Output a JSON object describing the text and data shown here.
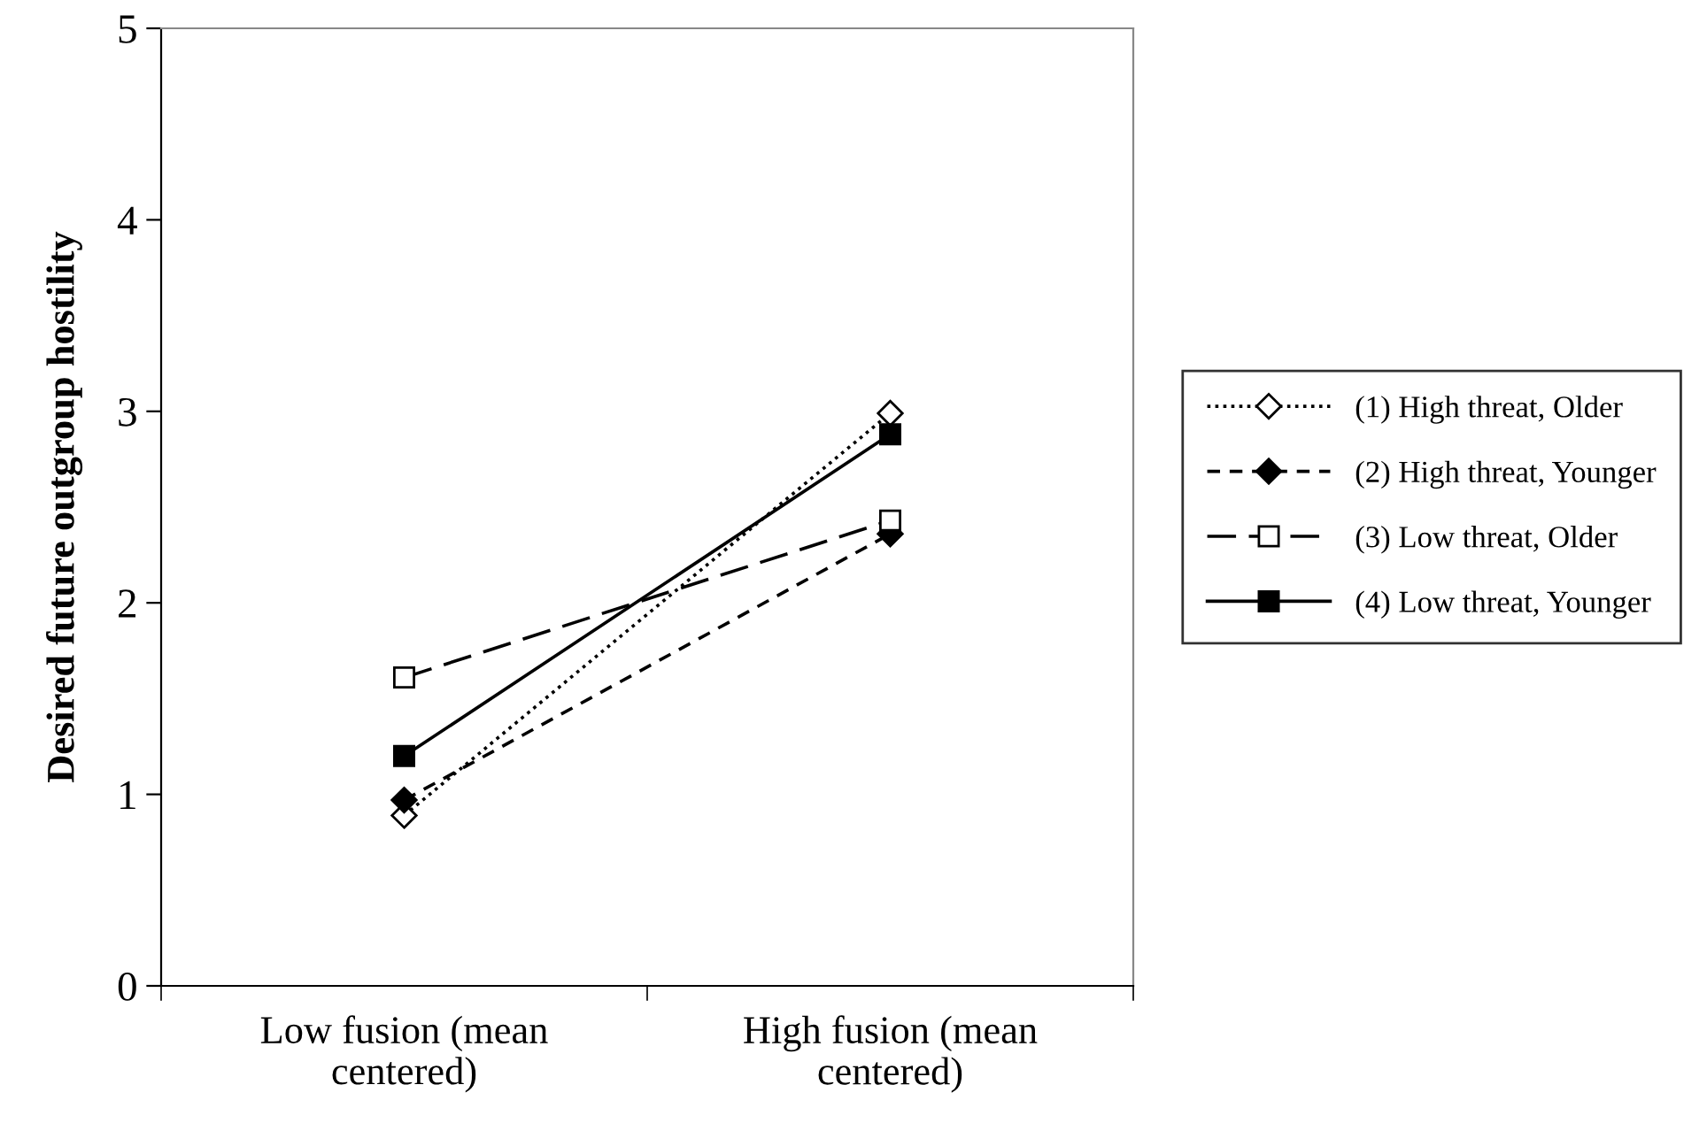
{
  "chart_data": {
    "type": "line",
    "ylabel": "Desired future outgroup hostility",
    "categories": [
      "Low fusion (mean\ncentered)",
      "High fusion (mean\ncentered)"
    ],
    "ylim": [
      0,
      5
    ],
    "yticks": [
      0,
      1,
      2,
      3,
      4,
      5
    ],
    "grid": false,
    "legend": "right",
    "series": [
      {
        "name": "(1) High threat, Older",
        "color": "#000000",
        "colors": [
          "#ffffff",
          "#ffffff"
        ],
        "values": [
          0.89,
          2.99
        ],
        "marker": "diamond",
        "line_style": "dotted"
      },
      {
        "name": "(2) High threat, Younger",
        "color": "#000000",
        "values": [
          0.97,
          2.36
        ],
        "marker": "diamond",
        "line_style": "dashed"
      },
      {
        "name": "(3) Low threat, Older",
        "color": "#000000",
        "colors": [
          "#ffffff",
          "#ffffff"
        ],
        "values": [
          1.61,
          2.43
        ],
        "marker": "square",
        "line_style": "dashed"
      },
      {
        "name": "(4) Low threat, Younger",
        "color": "#000000",
        "values": [
          1.2,
          2.88
        ],
        "marker": "square",
        "line_style": "solid"
      }
    ]
  }
}
